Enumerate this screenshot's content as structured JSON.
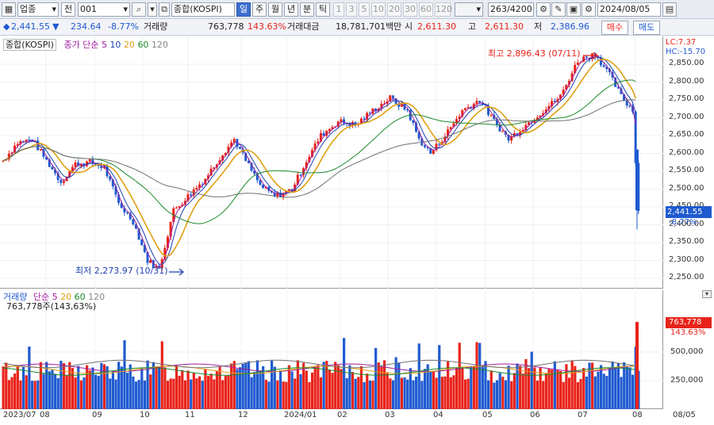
{
  "toolbar": {
    "market": "업종",
    "jeon": "전",
    "code": "001",
    "name": "종합(KOSPI)",
    "periods": [
      "일",
      "주",
      "월",
      "년",
      "분",
      "틱"
    ],
    "selected_period": "일",
    "intervals": [
      "1",
      "3",
      "5",
      "10",
      "20",
      "30",
      "60",
      "120"
    ],
    "count": "263/4200",
    "date": "2024/08/05"
  },
  "quote": {
    "price": "2,441.55",
    "arrow": "▼",
    "change": "234.64",
    "change_pct": "-8.77%",
    "volume_label": "거래량",
    "volume": "763,778",
    "volume_pct": "143.63%",
    "amount_label": "거래대금",
    "amount": "18,781,701백만",
    "open_label": "시",
    "open": "2,611.30",
    "high_label": "고",
    "high": "2,611.30",
    "low_label": "저",
    "low": "2,386.96",
    "buy": "매수",
    "sell": "매도"
  },
  "price_legend": {
    "name": "종합(KOSPI)",
    "ma_label": "종가 단순",
    "ma5": "5",
    "ma10": "10",
    "ma20": "20",
    "ma60": "60",
    "ma120": "120"
  },
  "vol_legend": {
    "name": "거래량",
    "ma_label": "단순",
    "ma5": "5",
    "ma20": "20",
    "ma60": "60",
    "ma120": "120",
    "value_line": "763,778주(143,63%)"
  },
  "annotations": {
    "high": "최고 2,896.43 (07/11)",
    "low": "최저 2,273.97 (10/31)",
    "lc": "LC:7.37",
    "hc": "HC:-15.70",
    "price_tag": "2,441.55",
    "pct_tag": "-8.77%",
    "vol_tag": "763,778",
    "vol_pct_tag": "143.63%"
  },
  "price_axis": [
    "2,850.00",
    "2,800.00",
    "2,750.00",
    "2,700.00",
    "2,650.00",
    "2,600.00",
    "2,550.00",
    "2,500.00",
    "2,450.00",
    "2,400.00",
    "2,350.00",
    "2,300.00",
    "2,250.00"
  ],
  "volume_axis": [
    "500,000",
    "250,000"
  ],
  "x_axis": [
    "2023/07",
    "08",
    "09",
    "10",
    "11",
    "12",
    "2024/01",
    "02",
    "03",
    "04",
    "05",
    "06",
    "07",
    "08",
    "08/05"
  ],
  "colors": {
    "up": "#e8231a",
    "down": "#1f5ad0",
    "ma5": "#a020a0",
    "ma10": "#1f3fb0",
    "ma20": "#e0a010",
    "ma60": "#1a8a2a",
    "ma120": "#707070"
  }
}
